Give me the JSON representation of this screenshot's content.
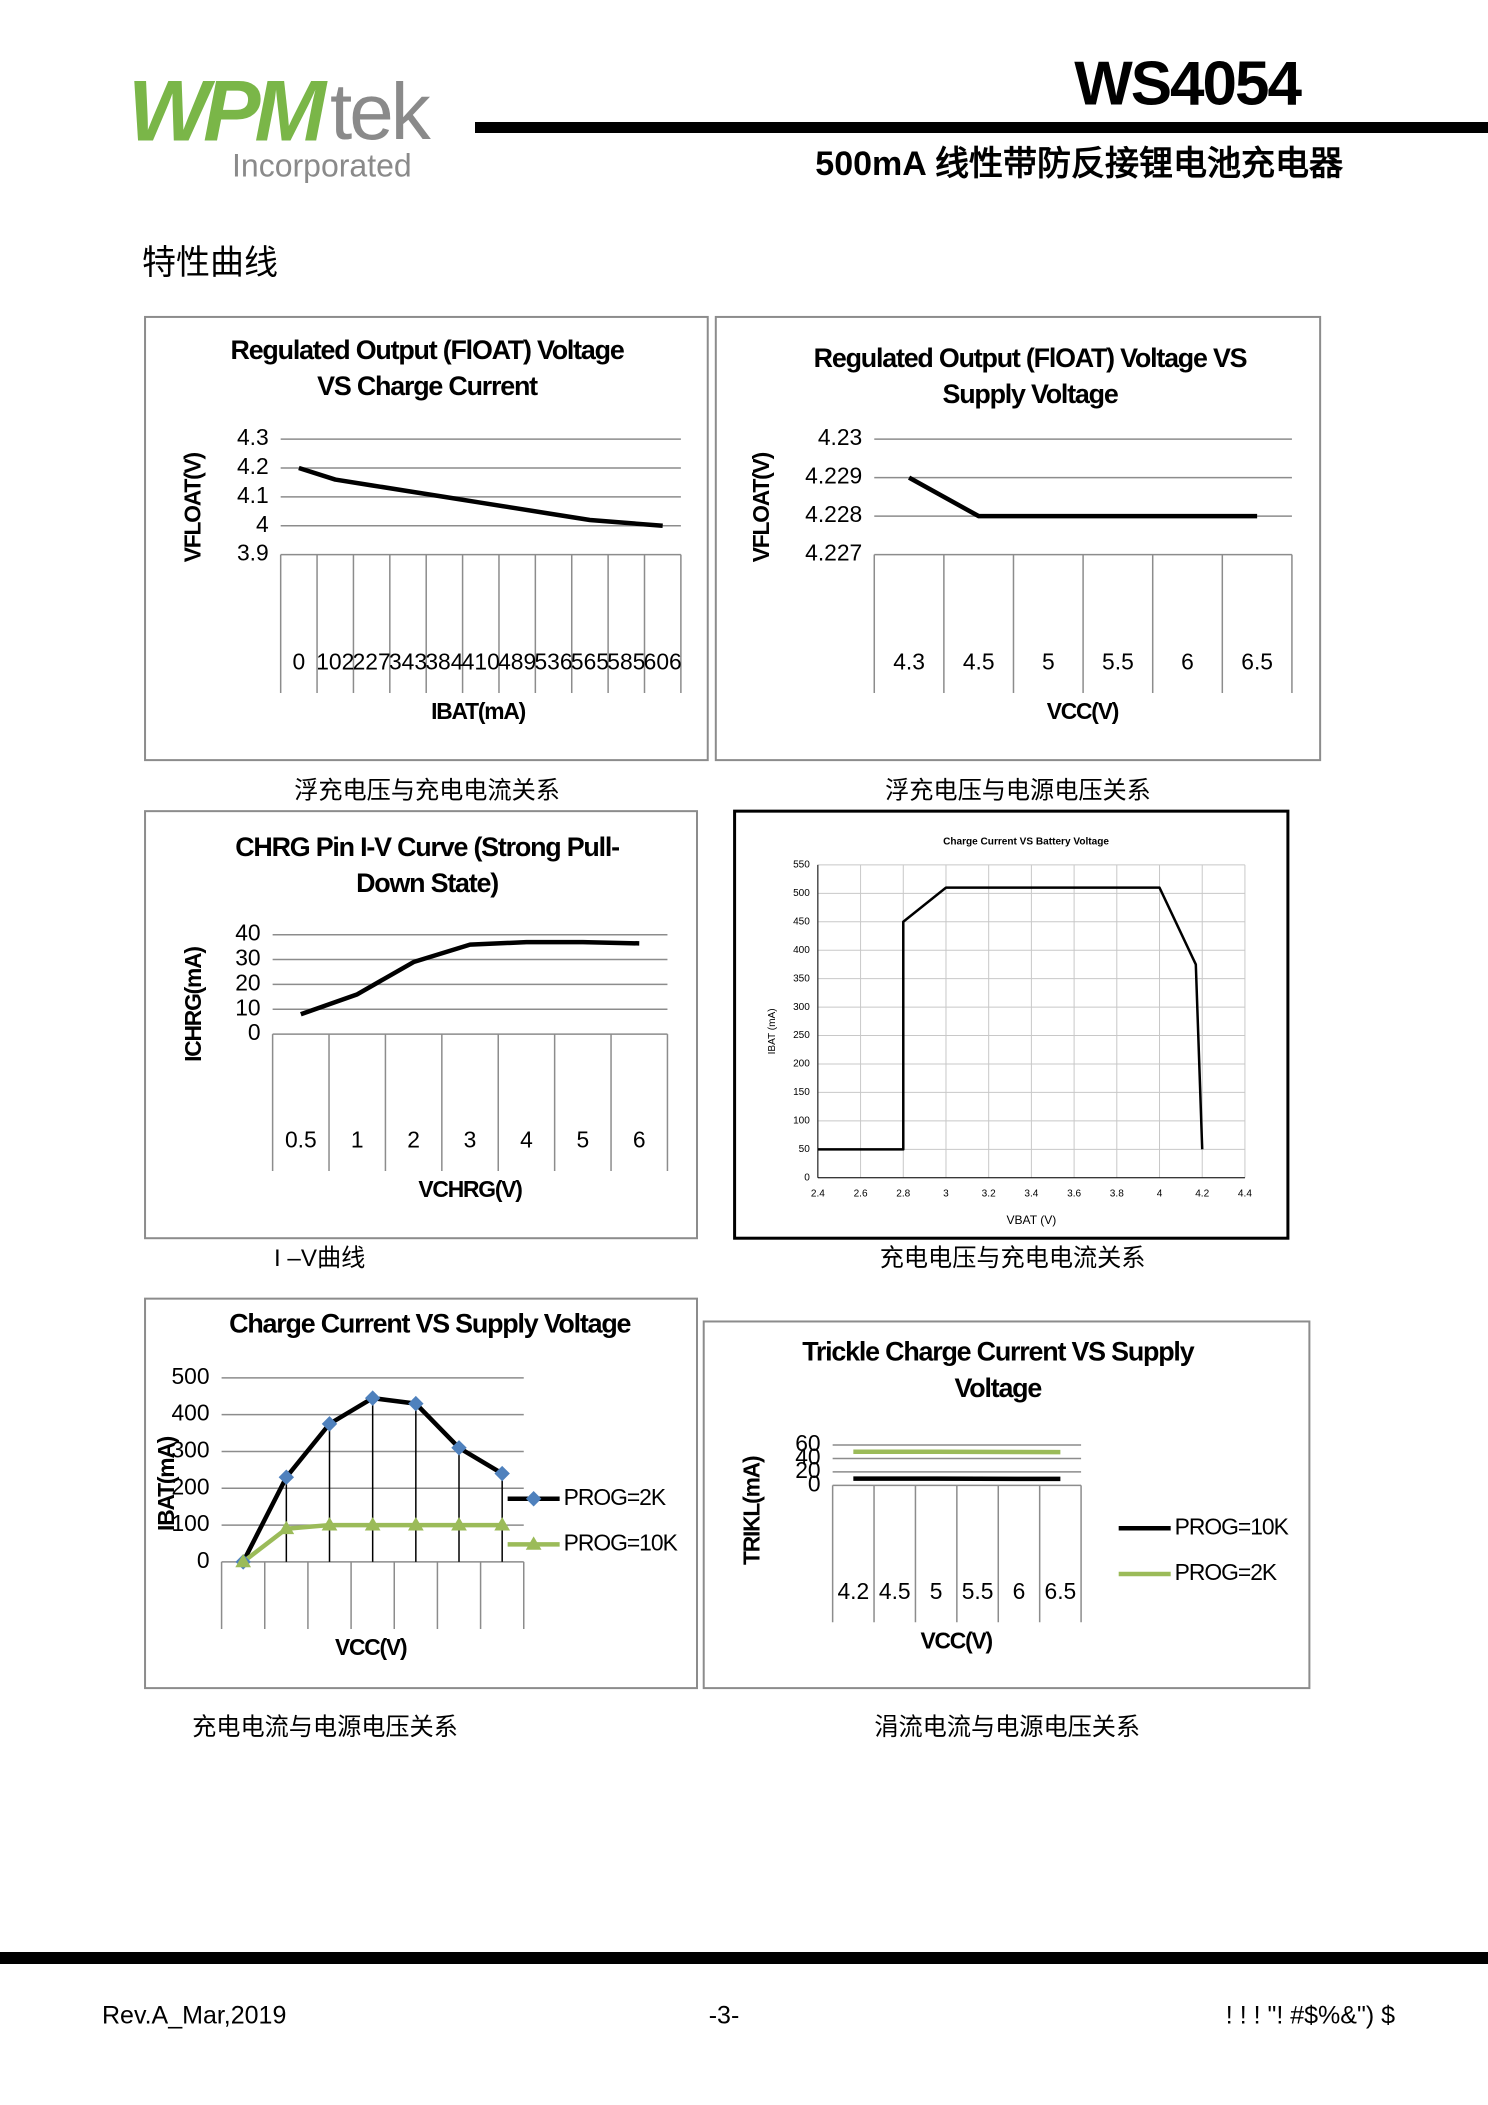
{
  "header": {
    "logo": {
      "mark": "WPM",
      "suffix": "tek",
      "sub": "Incorporated"
    },
    "part": "WS4054",
    "subtitle": "500mA 线性带防反接锂电池充电器"
  },
  "section_title": "特性曲线",
  "chart_data": [
    {
      "type": "line",
      "title": "Regulated Output (FlOAT) Voltage VS Charge Current",
      "caption": "浮充电压与充电电流关系",
      "x_label": "IBAT(mA)",
      "y_label": "VFLOAT(V)",
      "categories": [
        "0",
        "102",
        "227",
        "343",
        "384",
        "410",
        "489",
        "536",
        "565",
        "585",
        "606"
      ],
      "values": [
        4.2,
        4.16,
        4.14,
        4.12,
        4.1,
        4.08,
        4.06,
        4.04,
        4.02,
        4.01,
        4.0
      ],
      "color": "#000000",
      "ylim": [
        3.9,
        4.3
      ],
      "yticks": [
        3.9,
        4,
        4.1,
        4.2,
        4.3
      ],
      "grid": true
    },
    {
      "type": "line",
      "title": "Regulated Output (FlOAT) Voltage VS Supply Voltage",
      "caption": "浮充电压与电源电压关系",
      "x_label": "VCC(V)",
      "y_label": "VFLOAT(V)",
      "categories": [
        "4.3",
        "4.5",
        "5",
        "5.5",
        "6",
        "6.5"
      ],
      "values": [
        4.229,
        4.228,
        4.228,
        4.228,
        4.228,
        4.228
      ],
      "color": "#000000",
      "ylim": [
        4.227,
        4.23
      ],
      "yticks": [
        4.227,
        4.228,
        4.229,
        4.23
      ],
      "grid": true
    },
    {
      "type": "line",
      "title": "CHRG Pin I-V Curve (Strong Pull-Down State)",
      "caption": "I –V曲线",
      "x_label": "VCHRG(V)",
      "y_label": "ICHRG(mA)",
      "categories": [
        "0.5",
        "1",
        "2",
        "3",
        "4",
        "5",
        "6"
      ],
      "values": [
        8,
        16,
        29,
        36,
        37,
        37,
        36.5
      ],
      "color": "#000000",
      "ylim": [
        0,
        40
      ],
      "yticks": [
        0,
        10,
        20,
        30,
        40
      ],
      "grid": true
    },
    {
      "type": "line",
      "title": "Charge Current  VS Battery Voltage",
      "caption": "充电电压与充电电流关系",
      "x_label": "VBAT (V)",
      "y_label": "IBAT (mA)",
      "x": [
        2.4,
        2.8,
        2.8,
        3.0,
        4.0,
        4.17,
        4.2
      ],
      "values": [
        50,
        50,
        450,
        510,
        510,
        375,
        50
      ],
      "color": "#000000",
      "xlim": [
        2.4,
        4.4
      ],
      "xticks": [
        2.4,
        2.6,
        2.8,
        3,
        3.2,
        3.4,
        3.6,
        3.8,
        4,
        4.2,
        4.4
      ],
      "ylim": [
        0,
        550
      ],
      "yticks": [
        0,
        50,
        100,
        150,
        200,
        250,
        300,
        350,
        400,
        450,
        500,
        550
      ],
      "grid": true
    },
    {
      "type": "line",
      "title": "Charge Current VS Supply Voltage",
      "caption": "充电电流与电源电压关系",
      "x_label": "VCC(V)",
      "y_label": "IBAT(mA)",
      "categories": [
        null,
        null,
        null,
        null,
        null,
        null,
        null
      ],
      "series": [
        {
          "name": "PROG=2K",
          "color": "#000000",
          "marker": "diamond",
          "marker_color": "#4f81bd",
          "values": [
            0,
            230,
            375,
            445,
            430,
            310,
            240
          ]
        },
        {
          "name": "PROG=10K",
          "color": "#9bbb59",
          "marker": "triangle",
          "marker_color": "#9bbb59",
          "values": [
            0,
            90,
            100,
            100,
            100,
            100,
            100
          ]
        }
      ],
      "drop_lines": true,
      "ylim": [
        0,
        500
      ],
      "yticks": [
        0,
        100,
        200,
        300,
        400,
        500
      ],
      "grid": true,
      "legend": "right"
    },
    {
      "type": "line",
      "title": "Trickle Charge Current VS Supply Voltage",
      "caption": "涓流电流与电源电压关系",
      "x_label": "VCC(V)",
      "y_label": "TRIKL(mA)",
      "categories": [
        "4.2",
        "4.5",
        "5",
        "5.5",
        "6",
        "6.5"
      ],
      "series": [
        {
          "name": "PROG=10K",
          "color": "#000000",
          "values": [
            10,
            10,
            10,
            9.8,
            9.6,
            9.5
          ]
        },
        {
          "name": "PROG=2K",
          "color": "#9bbb59",
          "values": [
            50,
            50,
            50,
            49.8,
            49.6,
            49.5
          ]
        }
      ],
      "ylim": [
        0,
        60
      ],
      "yticks": [
        0,
        20,
        40,
        60
      ],
      "grid": true,
      "legend": "right"
    }
  ],
  "footer": {
    "revision": "Rev.A_Mar,2019",
    "page": "-3-",
    "code": "! ! ! \"! #$%&\") $"
  }
}
